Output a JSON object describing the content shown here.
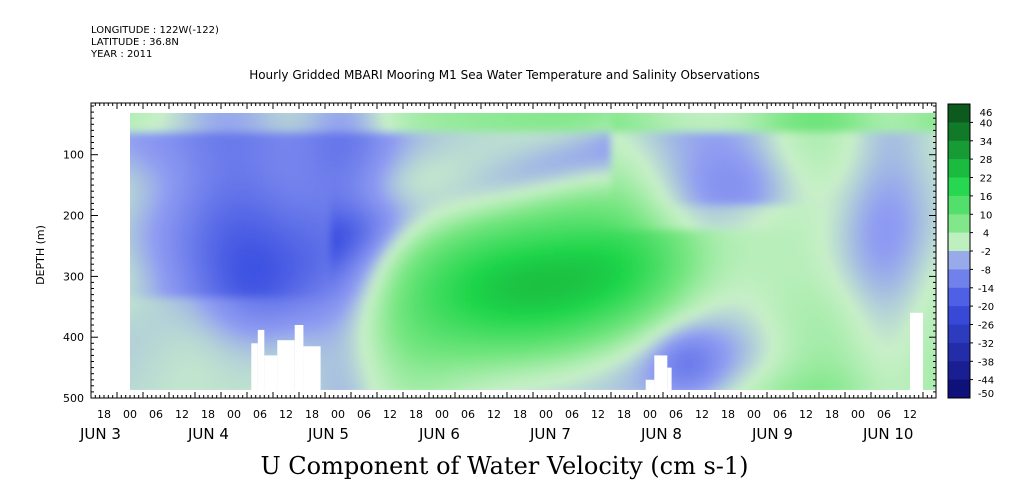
{
  "header": {
    "longitude": "LONGITUDE : 122W(-122)",
    "latitude": "LATITUDE : 36.8N",
    "year": "YEAR : 2011"
  },
  "chart_data": {
    "type": "heatmap",
    "title": "Hourly Gridded MBARI Mooring M1 Sea Water Temperature and Salinity Observations",
    "xlabel": "U Component of Water Velocity (cm s-1)",
    "ylabel": "DEPTH (m)",
    "y_range": [
      500,
      15
    ],
    "y_reversed": true,
    "y_ticks": [
      100,
      200,
      300,
      400,
      500
    ],
    "x_start_hour": 15,
    "x_hour_labels": [
      "18",
      "00",
      "06",
      "12",
      "18",
      "00",
      "06",
      "12",
      "18",
      "00",
      "06",
      "12",
      "18",
      "00",
      "06",
      "12",
      "18",
      "00",
      "06",
      "12",
      "18",
      "00",
      "06",
      "12",
      "18",
      "00",
      "06",
      "12",
      "18",
      "00",
      "06",
      "12"
    ],
    "x_day_labels": [
      "JUN  3",
      "JUN  4",
      "JUN  5",
      "JUN  6",
      "JUN  7",
      "JUN  8",
      "JUN  9",
      "JUN 10"
    ],
    "colorbar_levels": [
      46,
      40,
      34,
      28,
      22,
      16,
      10,
      4,
      -2,
      -8,
      -14,
      -20,
      -26,
      -32,
      -38,
      -44,
      -50
    ],
    "colorbar_colors": {
      "strong_positive": "#0a4a18",
      "positive": "#1fd64a",
      "near_zero": "#c8f0c8",
      "negative": "#8f9cf2",
      "strong_negative": "#0a0a70"
    }
  }
}
